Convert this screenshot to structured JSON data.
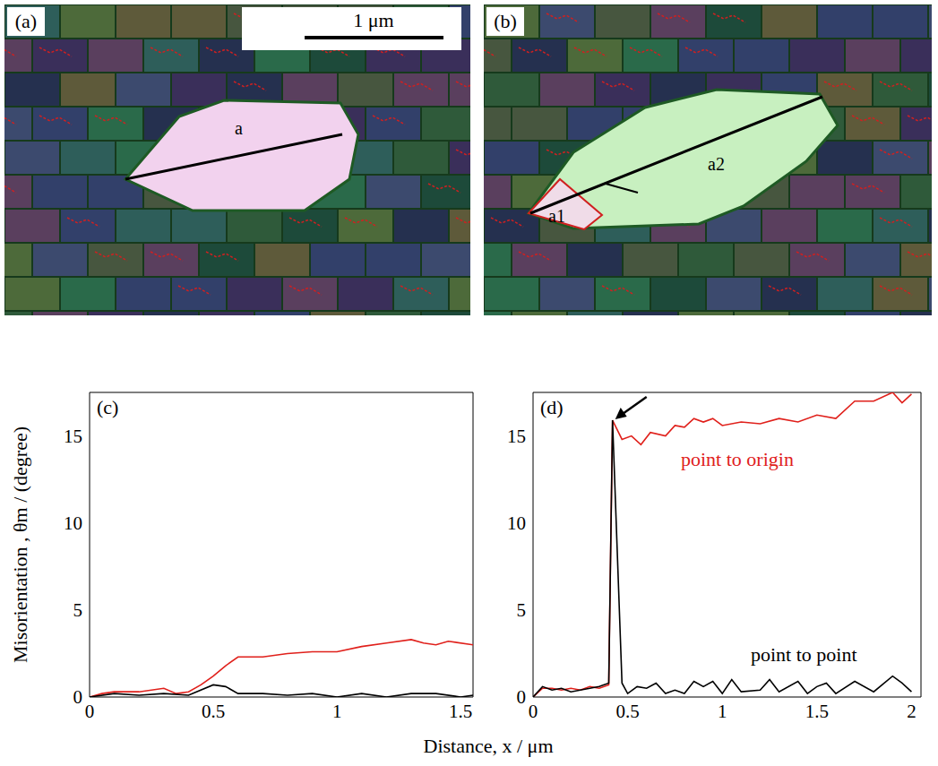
{
  "maps": [
    {
      "label": "(a)",
      "scale_bar": "1 μm",
      "line_labels": [
        "a"
      ]
    },
    {
      "label": "(b)",
      "line_labels": [
        "a1",
        "a2"
      ]
    }
  ],
  "xlabel": "Distance, x / μm",
  "ylabel": "Misorientation , θm / (degree)",
  "chart_data": [
    {
      "type": "line",
      "title": "(c)",
      "xlim": [
        0,
        1.55
      ],
      "xticks": [
        0,
        0.5,
        1,
        1.5
      ],
      "ylim": [
        0,
        17.5
      ],
      "yticks": [
        0,
        5,
        10,
        15
      ],
      "series": [
        {
          "name": "point to origin",
          "color": "#e0201b",
          "x": [
            0,
            0.05,
            0.1,
            0.2,
            0.3,
            0.35,
            0.4,
            0.45,
            0.5,
            0.55,
            0.6,
            0.7,
            0.8,
            0.9,
            1.0,
            1.1,
            1.2,
            1.3,
            1.35,
            1.4,
            1.45,
            1.55
          ],
          "values": [
            0,
            0.2,
            0.3,
            0.3,
            0.5,
            0.2,
            0.3,
            0.7,
            1.2,
            1.8,
            2.3,
            2.3,
            2.5,
            2.6,
            2.6,
            2.9,
            3.1,
            3.3,
            3.1,
            3.0,
            3.2,
            3.0
          ]
        },
        {
          "name": "point to point",
          "color": "#000000",
          "x": [
            0,
            0.1,
            0.2,
            0.3,
            0.4,
            0.5,
            0.55,
            0.6,
            0.7,
            0.8,
            0.9,
            1.0,
            1.1,
            1.2,
            1.3,
            1.4,
            1.5,
            1.55
          ],
          "values": [
            0,
            0.2,
            0.1,
            0.2,
            0.1,
            0.7,
            0.6,
            0.2,
            0.2,
            0.1,
            0.2,
            0,
            0.2,
            0,
            0.2,
            0.2,
            0,
            0.1
          ]
        }
      ]
    },
    {
      "type": "line",
      "title": "(d)",
      "xlim": [
        0,
        2.05
      ],
      "xticks": [
        0,
        0.5,
        1,
        1.5,
        2
      ],
      "ylim": [
        0,
        17.5
      ],
      "yticks": [
        0,
        5,
        10,
        15
      ],
      "series": [
        {
          "name": "point to origin",
          "color": "#e0201b",
          "x": [
            0,
            0.05,
            0.1,
            0.15,
            0.2,
            0.25,
            0.3,
            0.35,
            0.4,
            0.42,
            0.47,
            0.52,
            0.57,
            0.62,
            0.7,
            0.75,
            0.8,
            0.85,
            0.9,
            0.95,
            1.0,
            1.1,
            1.2,
            1.3,
            1.4,
            1.5,
            1.6,
            1.7,
            1.8,
            1.9,
            1.95,
            2.0
          ],
          "values": [
            0,
            0.5,
            0.5,
            0.4,
            0.5,
            0.4,
            0.6,
            0.5,
            0.7,
            15.9,
            14.8,
            15.0,
            14.5,
            15.2,
            15.0,
            15.6,
            15.5,
            16.0,
            15.8,
            16.0,
            15.6,
            15.8,
            15.7,
            16.0,
            15.8,
            16.2,
            16.0,
            17.0,
            17.0,
            17.5,
            16.9,
            17.4
          ]
        },
        {
          "name": "point to point",
          "color": "#000000",
          "x": [
            0,
            0.05,
            0.1,
            0.15,
            0.2,
            0.3,
            0.35,
            0.4,
            0.42,
            0.47,
            0.5,
            0.55,
            0.6,
            0.65,
            0.7,
            0.75,
            0.8,
            0.85,
            0.9,
            0.95,
            1.0,
            1.05,
            1.1,
            1.2,
            1.25,
            1.3,
            1.4,
            1.45,
            1.5,
            1.55,
            1.6,
            1.7,
            1.8,
            1.9,
            1.95,
            2.0
          ],
          "values": [
            0,
            0.6,
            0.4,
            0.5,
            0.3,
            0.5,
            0.6,
            0.8,
            15.9,
            0.8,
            0.2,
            0.6,
            0.5,
            0.8,
            0.2,
            0.4,
            0.2,
            0.9,
            0.6,
            0.9,
            0.2,
            1.0,
            0.3,
            0.4,
            1.0,
            0.3,
            0.9,
            0.2,
            0.6,
            0.8,
            0.2,
            0.9,
            0.3,
            1.2,
            0.8,
            0.3
          ]
        }
      ]
    }
  ]
}
